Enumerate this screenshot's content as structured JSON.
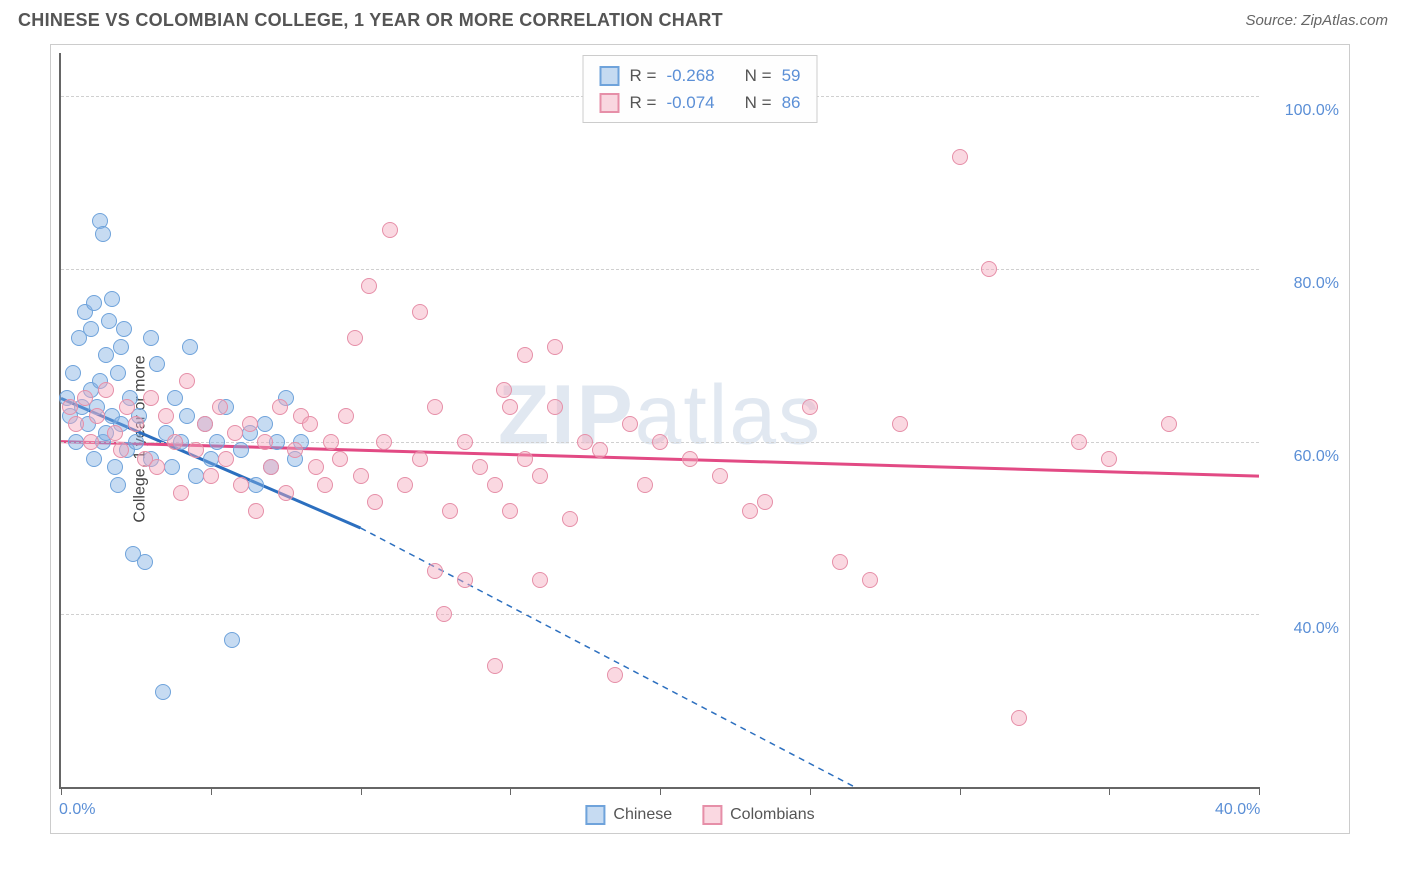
{
  "header": {
    "title": "CHINESE VS COLOMBIAN COLLEGE, 1 YEAR OR MORE CORRELATION CHART",
    "source": "Source: ZipAtlas.com"
  },
  "watermark": {
    "bold": "ZIP",
    "rest": "atlas"
  },
  "chart": {
    "type": "scatter",
    "y_axis_label": "College, 1 year or more",
    "xlim": [
      0,
      40
    ],
    "ylim": [
      20,
      105
    ],
    "x_ticks": [
      0,
      5,
      10,
      15,
      20,
      25,
      30,
      35,
      40
    ],
    "x_tick_labels": {
      "0": "0.0%",
      "40": "40.0%"
    },
    "y_ticks": [
      40,
      60,
      80,
      100
    ],
    "y_tick_labels": {
      "40": "40.0%",
      "60": "60.0%",
      "80": "80.0%",
      "100": "100.0%"
    },
    "grid_color": "#d0d0d0",
    "axis_color": "#666666",
    "tick_label_color": "#5b8fd6",
    "background_color": "#ffffff"
  },
  "series": [
    {
      "name": "Chinese",
      "fill": "rgba(128,175,227,0.45)",
      "stroke": "#6fa3db",
      "trend_color": "#2c6fbf",
      "trend_solid": {
        "x1": 0,
        "y1": 65,
        "x2": 10,
        "y2": 50
      },
      "trend_dash": {
        "x1": 10,
        "y1": 50,
        "x2": 26.5,
        "y2": 20
      },
      "points": [
        [
          0.2,
          65
        ],
        [
          0.3,
          63
        ],
        [
          0.4,
          68
        ],
        [
          0.5,
          60
        ],
        [
          0.6,
          72
        ],
        [
          0.7,
          64
        ],
        [
          0.8,
          75
        ],
        [
          0.9,
          62
        ],
        [
          1.0,
          66
        ],
        [
          1.0,
          73
        ],
        [
          1.1,
          58
        ],
        [
          1.1,
          76
        ],
        [
          1.2,
          64
        ],
        [
          1.3,
          67
        ],
        [
          1.3,
          85.5
        ],
        [
          1.4,
          60
        ],
        [
          1.4,
          84
        ],
        [
          1.5,
          70
        ],
        [
          1.5,
          61
        ],
        [
          1.6,
          74
        ],
        [
          1.7,
          63
        ],
        [
          1.7,
          76.5
        ],
        [
          1.8,
          57
        ],
        [
          1.9,
          68
        ],
        [
          1.9,
          55
        ],
        [
          2.0,
          62
        ],
        [
          2.0,
          71
        ],
        [
          2.1,
          73
        ],
        [
          2.2,
          59
        ],
        [
          2.3,
          65
        ],
        [
          2.4,
          47
        ],
        [
          2.5,
          60
        ],
        [
          2.6,
          63
        ],
        [
          2.8,
          46
        ],
        [
          3.0,
          72
        ],
        [
          3.0,
          58
        ],
        [
          3.2,
          69
        ],
        [
          3.4,
          31
        ],
        [
          3.5,
          61
        ],
        [
          3.7,
          57
        ],
        [
          3.8,
          65
        ],
        [
          4.0,
          60
        ],
        [
          4.2,
          63
        ],
        [
          4.3,
          71
        ],
        [
          4.5,
          56
        ],
        [
          4.8,
          62
        ],
        [
          5.0,
          58
        ],
        [
          5.2,
          60
        ],
        [
          5.5,
          64
        ],
        [
          5.7,
          37
        ],
        [
          6.0,
          59
        ],
        [
          6.3,
          61
        ],
        [
          6.5,
          55
        ],
        [
          6.8,
          62
        ],
        [
          7.0,
          57
        ],
        [
          7.2,
          60
        ],
        [
          7.5,
          65
        ],
        [
          7.8,
          58
        ],
        [
          8.0,
          60
        ]
      ]
    },
    {
      "name": "Colombians",
      "fill": "rgba(243,168,188,0.45)",
      "stroke": "#e68fa8",
      "trend_color": "#e24a84",
      "trend_solid": {
        "x1": 0,
        "y1": 60,
        "x2": 40,
        "y2": 56
      },
      "trend_dash": null,
      "points": [
        [
          0.3,
          64
        ],
        [
          0.5,
          62
        ],
        [
          0.8,
          65
        ],
        [
          1.0,
          60
        ],
        [
          1.2,
          63
        ],
        [
          1.5,
          66
        ],
        [
          1.8,
          61
        ],
        [
          2.0,
          59
        ],
        [
          2.2,
          64
        ],
        [
          2.5,
          62
        ],
        [
          2.8,
          58
        ],
        [
          3.0,
          65
        ],
        [
          3.2,
          57
        ],
        [
          3.5,
          63
        ],
        [
          3.8,
          60
        ],
        [
          4.0,
          54
        ],
        [
          4.2,
          67
        ],
        [
          4.5,
          59
        ],
        [
          4.8,
          62
        ],
        [
          5.0,
          56
        ],
        [
          5.3,
          64
        ],
        [
          5.5,
          58
        ],
        [
          5.8,
          61
        ],
        [
          6.0,
          55
        ],
        [
          6.3,
          62
        ],
        [
          6.5,
          52
        ],
        [
          6.8,
          60
        ],
        [
          7.0,
          57
        ],
        [
          7.3,
          64
        ],
        [
          7.5,
          54
        ],
        [
          7.8,
          59
        ],
        [
          8.0,
          63
        ],
        [
          8.3,
          62
        ],
        [
          8.5,
          57
        ],
        [
          8.8,
          55
        ],
        [
          9.0,
          60
        ],
        [
          9.3,
          58
        ],
        [
          9.5,
          63
        ],
        [
          9.8,
          72
        ],
        [
          10.0,
          56
        ],
        [
          10.3,
          78
        ],
        [
          10.5,
          53
        ],
        [
          10.8,
          60
        ],
        [
          11.0,
          84.5
        ],
        [
          11.5,
          55
        ],
        [
          12.0,
          58
        ],
        [
          12.0,
          75
        ],
        [
          12.5,
          64
        ],
        [
          12.5,
          45
        ],
        [
          13.0,
          52
        ],
        [
          12.8,
          40
        ],
        [
          13.5,
          60
        ],
        [
          13.5,
          44
        ],
        [
          14.0,
          57
        ],
        [
          14.5,
          55
        ],
        [
          14.5,
          34
        ],
        [
          14.8,
          66
        ],
        [
          15.0,
          52
        ],
        [
          15.0,
          64
        ],
        [
          15.5,
          58
        ],
        [
          15.5,
          70
        ],
        [
          16.0,
          56
        ],
        [
          16.0,
          44
        ],
        [
          16.5,
          64
        ],
        [
          16.5,
          71
        ],
        [
          17.0,
          51
        ],
        [
          17.5,
          60
        ],
        [
          18.0,
          59
        ],
        [
          18.5,
          33
        ],
        [
          19.0,
          62
        ],
        [
          19.5,
          55
        ],
        [
          20.0,
          60
        ],
        [
          21.0,
          58
        ],
        [
          22.0,
          56
        ],
        [
          23.0,
          52
        ],
        [
          23.5,
          53
        ],
        [
          25.0,
          64
        ],
        [
          26.0,
          46
        ],
        [
          27.0,
          44
        ],
        [
          28.0,
          62
        ],
        [
          30.0,
          93
        ],
        [
          31.0,
          80
        ],
        [
          32.0,
          28
        ],
        [
          34.0,
          60
        ],
        [
          35.0,
          58
        ],
        [
          37.0,
          62
        ]
      ]
    }
  ],
  "legend_top": {
    "rows": [
      {
        "swatch_fill": "rgba(128,175,227,0.45)",
        "swatch_stroke": "#6fa3db",
        "r_label": "R =",
        "r_val": "-0.268",
        "n_label": "N =",
        "n_val": "59"
      },
      {
        "swatch_fill": "rgba(243,168,188,0.45)",
        "swatch_stroke": "#e68fa8",
        "r_label": "R =",
        "r_val": "-0.074",
        "n_label": "N =",
        "n_val": "86"
      }
    ]
  },
  "legend_bottom": {
    "items": [
      {
        "swatch_fill": "rgba(128,175,227,0.45)",
        "swatch_stroke": "#6fa3db",
        "label": "Chinese"
      },
      {
        "swatch_fill": "rgba(243,168,188,0.45)",
        "swatch_stroke": "#e68fa8",
        "label": "Colombians"
      }
    ]
  }
}
